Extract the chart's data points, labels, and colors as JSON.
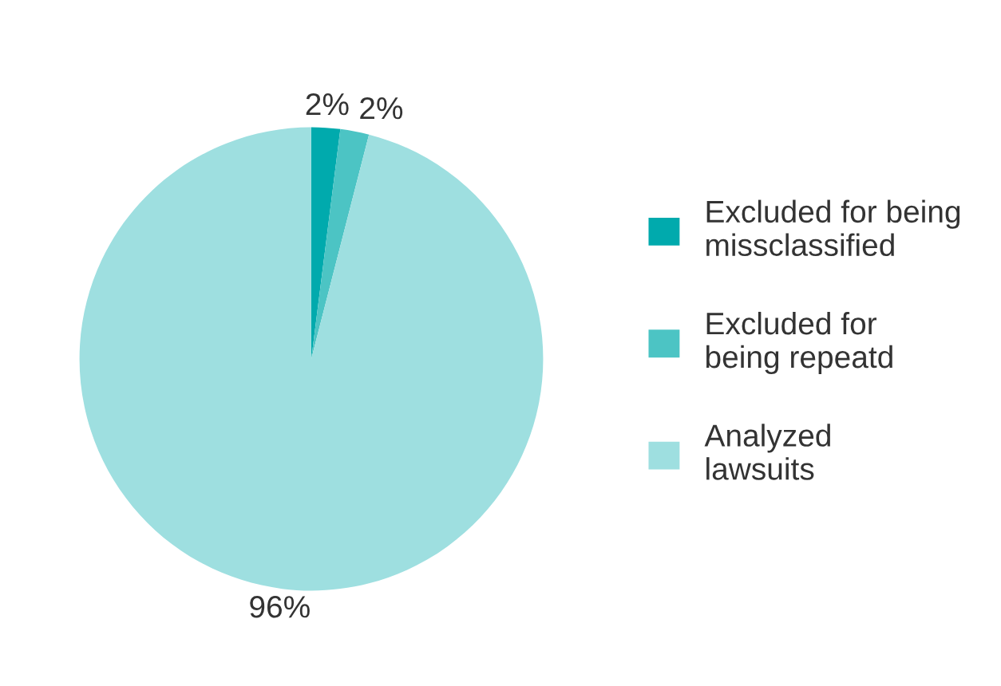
{
  "chart_data": {
    "type": "pie",
    "categories": [
      "Excluded for being\nmissclassified",
      "Excluded for\nbeing repeatd",
      "Analyzed\nlawsuits"
    ],
    "values": [
      2,
      2,
      96
    ],
    "value_labels": [
      "2%",
      "2%",
      "96%"
    ],
    "colors": [
      "#00aaad",
      "#4cc4c4",
      "#9edfe0"
    ],
    "legend": "right"
  }
}
